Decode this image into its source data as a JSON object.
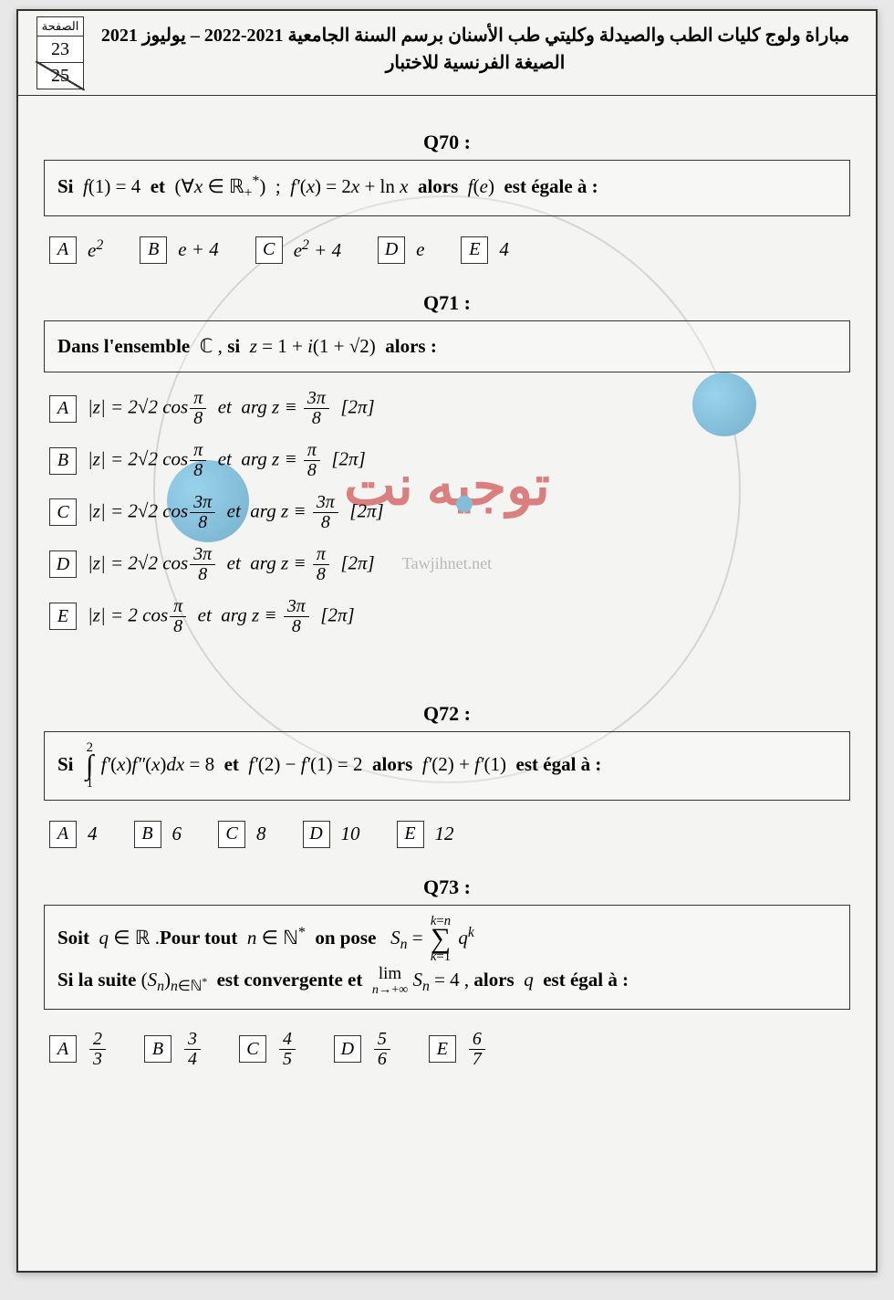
{
  "header": {
    "page_label": "الصفحة",
    "page_current": "23",
    "page_total": "25",
    "title_line1": "مباراة ولوج كليات الطب والصيدلة وكليتي طب الأسنان برسم السنة الجامعية 2021-2022 – يوليوز 2021",
    "title_line2": "الصيغة الفرنسية للاختبار"
  },
  "watermark": {
    "text_ar": "توجيه نت",
    "text_en": "Tawjihnet.net"
  },
  "questions": [
    {
      "label": "Q70 :",
      "stem_html": "<b>Si</b>&nbsp; <span class='math'>f</span>(1) = 4 &nbsp;<b>et</b>&nbsp; (∀<span class='math'>x</span> ∈ ℝ<sub>+</sub><sup>*</sup>) &nbsp;; &nbsp;<span class='math'>f&prime;</span>(<span class='math'>x</span>) = 2<span class='math'>x</span> + ln <span class='math'>x</span> &nbsp;<b>alors</b>&nbsp; <span class='math'>f</span>(<span class='math'>e</span>) &nbsp;<b>est égale à :</b>",
      "layout": "row",
      "options": [
        {
          "letter": "A",
          "html": "<span class='math'>e</span><sup>2</sup>"
        },
        {
          "letter": "B",
          "html": "<span class='math'>e</span> + 4"
        },
        {
          "letter": "C",
          "html": "<span class='math'>e</span><sup>2</sup> + 4"
        },
        {
          "letter": "D",
          "html": "<span class='math'>e</span>"
        },
        {
          "letter": "E",
          "html": "4"
        }
      ]
    },
    {
      "label": "Q71 :",
      "stem_html": "<b>Dans l'ensemble</b> &nbsp;ℂ , <b>si</b>&nbsp; <span class='math'>z</span> = 1 + <span class='math'>i</span>(1 + √2) &nbsp;<b>alors :</b>",
      "layout": "col",
      "options": [
        {
          "letter": "A",
          "html": "|<span class='math'>z</span>| = 2√2 cos<span class='frac'><span class='num'><span class='math'>π</span></span><span class='den'>8</span></span> &nbsp;et&nbsp; arg <span class='math'>z</span> ≡ <span class='frac'><span class='num'>3<span class='math'>π</span></span><span class='den'>8</span></span> &nbsp;[2<span class='math'>π</span>]"
        },
        {
          "letter": "B",
          "html": "|<span class='math'>z</span>| = 2√2 cos<span class='frac'><span class='num'><span class='math'>π</span></span><span class='den'>8</span></span> &nbsp;et&nbsp; arg <span class='math'>z</span> ≡ <span class='frac'><span class='num'><span class='math'>π</span></span><span class='den'>8</span></span> &nbsp;[2<span class='math'>π</span>]"
        },
        {
          "letter": "C",
          "html": "|<span class='math'>z</span>| = 2√2 cos<span class='frac'><span class='num'>3<span class='math'>π</span></span><span class='den'>8</span></span> &nbsp;et&nbsp; arg <span class='math'>z</span> ≡ <span class='frac'><span class='num'>3<span class='math'>π</span></span><span class='den'>8</span></span> &nbsp;[2<span class='math'>π</span>]"
        },
        {
          "letter": "D",
          "html": "|<span class='math'>z</span>| = 2√2 cos<span class='frac'><span class='num'>3<span class='math'>π</span></span><span class='den'>8</span></span> &nbsp;et&nbsp; arg <span class='math'>z</span> ≡ <span class='frac'><span class='num'><span class='math'>π</span></span><span class='den'>8</span></span> &nbsp;[2<span class='math'>π</span>]"
        },
        {
          "letter": "E",
          "html": "|<span class='math'>z</span>| = 2 cos<span class='frac'><span class='num'><span class='math'>π</span></span><span class='den'>8</span></span> &nbsp;et&nbsp; arg <span class='math'>z</span> ≡ <span class='frac'><span class='num'>3<span class='math'>π</span></span><span class='den'>8</span></span> &nbsp;[2<span class='math'>π</span>]"
        }
      ]
    },
    {
      "label": "Q72 :",
      "stem_html": "<b>Si</b>&nbsp; <span class='big-op'><span>2</span><span class='sym'>∫</span><span>1</span></span> <span class='math'>f&prime;</span>(<span class='math'>x</span>)<span class='math'>f&Prime;</span>(<span class='math'>x</span>)<span class='math'>dx</span> = 8 &nbsp;<b>et</b>&nbsp; <span class='math'>f&prime;</span>(2) − <span class='math'>f&prime;</span>(1) = 2 &nbsp;<b>alors</b>&nbsp; <span class='math'>f&prime;</span>(2) + <span class='math'>f&prime;</span>(1) &nbsp;<b>est égal à :</b>",
      "layout": "row",
      "options": [
        {
          "letter": "A",
          "html": "4"
        },
        {
          "letter": "B",
          "html": "6"
        },
        {
          "letter": "C",
          "html": "8"
        },
        {
          "letter": "D",
          "html": "10"
        },
        {
          "letter": "E",
          "html": "12"
        }
      ]
    },
    {
      "label": "Q73 :",
      "stem_html": "<b>Soit</b>&nbsp; <span class='math'>q</span> ∈ ℝ .<b>Pour tout</b>&nbsp; <span class='math'>n</span> ∈ ℕ<sup>*</sup> &nbsp;<b>on pose</b>&nbsp;&nbsp; <span class='math'>S<sub>n</sub></span> = <span class='big-op'><span><span class='math'>k</span>=<span class='math'>n</span></span><span class='sym'>∑</span><span><span class='math'>k</span>=1</span></span> <span class='math'>q<sup>k</sup></span><br><b>Si la suite</b> (<span class='math'>S<sub>n</sub></span>)<sub><span class='math'>n</span>∈ℕ<sup>*</sup></sub> &nbsp;<b>est convergente et</b>&nbsp; <span style='display:inline-flex;flex-direction:column;align-items:center;vertical-align:middle;font-size:0.9em;line-height:1;'><span>lim</span><span style='font-size:0.75em'><span class='math'>n</span>→+∞</span></span> <span class='math'>S<sub>n</sub></span> = 4 , <b>alors</b>&nbsp; <span class='math'>q</span> &nbsp;<b>est égal à :</b>",
      "layout": "row",
      "options": [
        {
          "letter": "A",
          "html": "<span class='frac'><span class='num'>2</span><span class='den'>3</span></span>"
        },
        {
          "letter": "B",
          "html": "<span class='frac'><span class='num'>3</span><span class='den'>4</span></span>"
        },
        {
          "letter": "C",
          "html": "<span class='frac'><span class='num'>4</span><span class='den'>5</span></span>"
        },
        {
          "letter": "D",
          "html": "<span class='frac'><span class='num'>5</span><span class='den'>6</span></span>"
        },
        {
          "letter": "E",
          "html": "<span class='frac'><span class='num'>6</span><span class='den'>7</span></span>"
        }
      ]
    }
  ],
  "colors": {
    "page_bg": "#f4f4f2",
    "border": "#333333",
    "watermark_red": "#c82020",
    "watermark_blue": "#2a8fc7"
  }
}
